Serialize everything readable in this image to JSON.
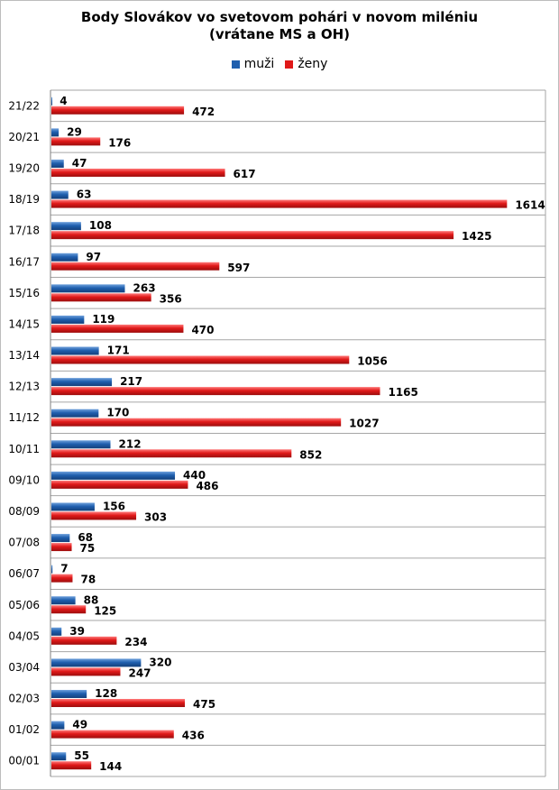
{
  "colors": {
    "men": "#1f5fae",
    "women": "#e01919",
    "grid": "#a6a6a6"
  },
  "chart_data": {
    "type": "bar",
    "orientation": "horizontal",
    "title": "Body Slovákov vo svetovom pohári v novom miléniu",
    "subtitle": "(vrátane MS a OH)",
    "legend_position": "top",
    "grid": true,
    "xlim": [
      0,
      1750
    ],
    "categories": [
      "21/22",
      "20/21",
      "19/20",
      "18/19",
      "17/18",
      "16/17",
      "15/16",
      "14/15",
      "13/14",
      "12/13",
      "11/12",
      "10/11",
      "09/10",
      "08/09",
      "07/08",
      "06/07",
      "05/06",
      "04/05",
      "03/04",
      "02/03",
      "01/02",
      "00/01"
    ],
    "series": [
      {
        "name": "muži",
        "values": [
          4,
          29,
          47,
          63,
          108,
          97,
          263,
          119,
          171,
          217,
          170,
          212,
          440,
          156,
          68,
          7,
          88,
          39,
          320,
          128,
          49,
          55
        ]
      },
      {
        "name": "ženy",
        "values": [
          472,
          176,
          617,
          1614,
          1425,
          597,
          356,
          470,
          1056,
          1165,
          1027,
          852,
          486,
          303,
          75,
          78,
          125,
          234,
          247,
          475,
          436,
          144
        ]
      }
    ]
  }
}
